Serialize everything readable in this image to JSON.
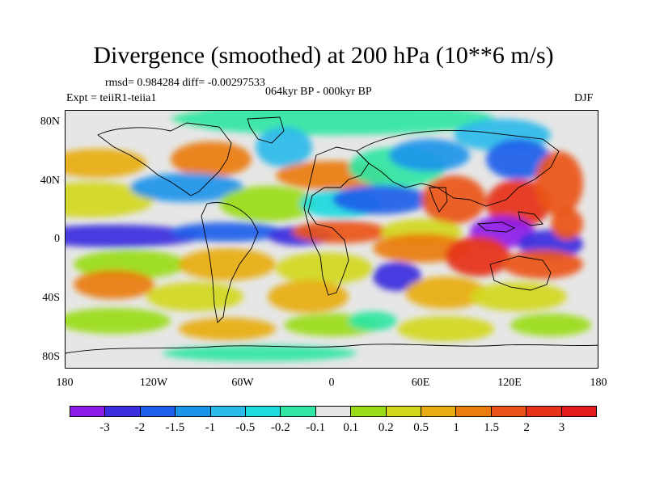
{
  "title": "Divergence (smoothed) at 200 hPa (10**6 m/s)",
  "stats_line": "rmsd= 0.984284 diff= -0.00297533",
  "experiment": "Expt = teiiR1-teiia1",
  "period": "064kyr BP - 000kyr BP",
  "season": "DJF",
  "x_ticks": [
    "180",
    "120W",
    "60W",
    "0",
    "60E",
    "120E",
    "180"
  ],
  "y_ticks": [
    "80N",
    "40N",
    "0",
    "40S",
    "80S"
  ],
  "colorbar": {
    "labels": [
      "-3",
      "-2",
      "-1.5",
      "-1",
      "-0.5",
      "-0.2",
      "-0.1",
      "0.1",
      "0.2",
      "0.5",
      "1",
      "1.5",
      "2",
      "3"
    ],
    "colors": [
      "#8e1dea",
      "#3a2ede",
      "#1e60ea",
      "#1b95ea",
      "#2bbbea",
      "#1fdadf",
      "#2fe6a4",
      "#e6e6e6",
      "#9adc18",
      "#d3d81c",
      "#e8ac10",
      "#ea7c10",
      "#ea5418",
      "#e63219",
      "#e21c1c"
    ]
  },
  "chart_data": {
    "type": "heatmap",
    "title": "Divergence (smoothed) at 200 hPa (10**6 m/s)",
    "x_range": [
      -180,
      180
    ],
    "y_range": [
      -90,
      90
    ],
    "x_ticks": [
      "180",
      "120W",
      "60W",
      "0",
      "60E",
      "120E",
      "180"
    ],
    "y_ticks": [
      "80N",
      "40N",
      "0",
      "40S",
      "80S"
    ],
    "contour_levels": [
      -3,
      -2,
      -1.5,
      -1,
      -0.5,
      -0.2,
      -0.1,
      0.1,
      0.2,
      0.5,
      1,
      1.5,
      2,
      3
    ]
  }
}
